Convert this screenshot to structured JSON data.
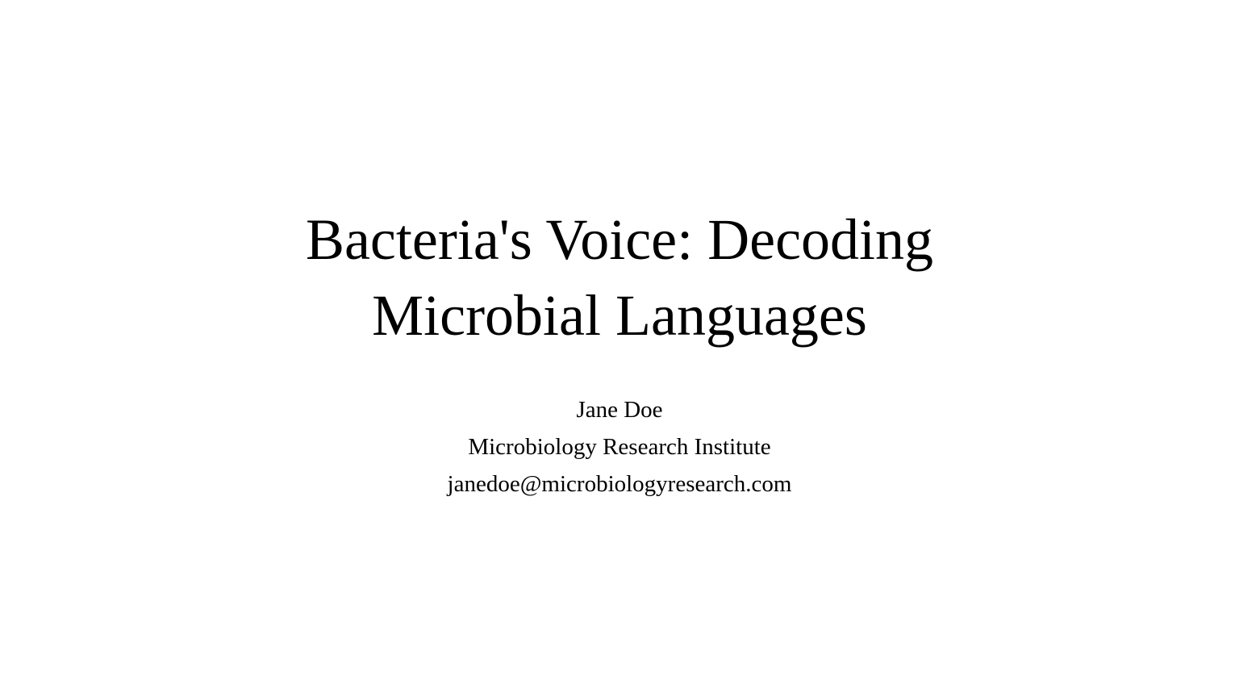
{
  "slide": {
    "title_line1": "Bacteria's Voice: Decoding",
    "title_line2": "Microbial Languages",
    "author": "Jane Doe",
    "affiliation": "Microbiology Research Institute",
    "email": "janedoe@microbiologyresearch.com"
  }
}
